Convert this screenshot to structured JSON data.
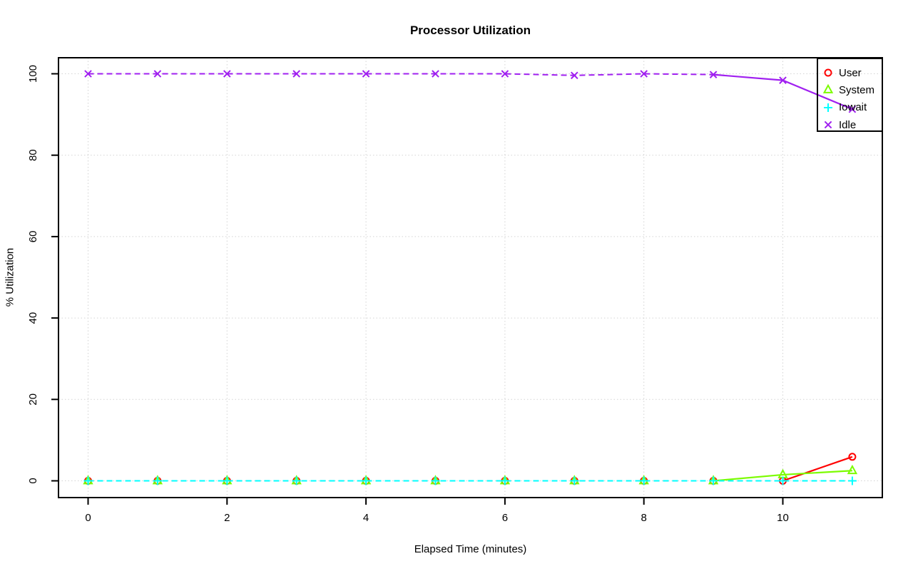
{
  "window": {
    "background": "#ffffff"
  },
  "chart_data": {
    "type": "line",
    "title": "Processor Utilization",
    "xlabel": "Elapsed Time (minutes)",
    "ylabel": "% Utilization",
    "x": [
      0,
      1,
      2,
      3,
      4,
      5,
      6,
      7,
      8,
      9,
      10,
      11
    ],
    "xlim": [
      -0.4,
      11.4
    ],
    "ylim": [
      0,
      100
    ],
    "x_ticks": [
      0,
      2,
      4,
      6,
      8,
      10
    ],
    "y_ticks": [
      0,
      20,
      40,
      60,
      80,
      100
    ],
    "grid": true,
    "grid_color": "#d3d3d3",
    "axis_color": "#000000",
    "legend_position": "top-right",
    "line_style": "dashed",
    "series": [
      {
        "name": "User",
        "color": "#ff0000",
        "marker": "circle",
        "values": [
          0,
          0,
          0,
          0,
          0,
          0,
          0,
          0,
          0,
          0,
          0,
          5.9
        ]
      },
      {
        "name": "System",
        "color": "#7cfc00",
        "marker": "triangle",
        "values": [
          0,
          0,
          0,
          0,
          0,
          0,
          0,
          0,
          0,
          0,
          1.5,
          2.5
        ]
      },
      {
        "name": "Iowait",
        "color": "#00ffff",
        "marker": "plus",
        "values": [
          0,
          0,
          0,
          0,
          0,
          0,
          0,
          0,
          0,
          0,
          0,
          0
        ]
      },
      {
        "name": "Idle",
        "color": "#a020f0",
        "marker": "x",
        "values": [
          100,
          100,
          100,
          100,
          100,
          100,
          100,
          99.6,
          100,
          99.8,
          98.4,
          91.3
        ]
      }
    ]
  }
}
